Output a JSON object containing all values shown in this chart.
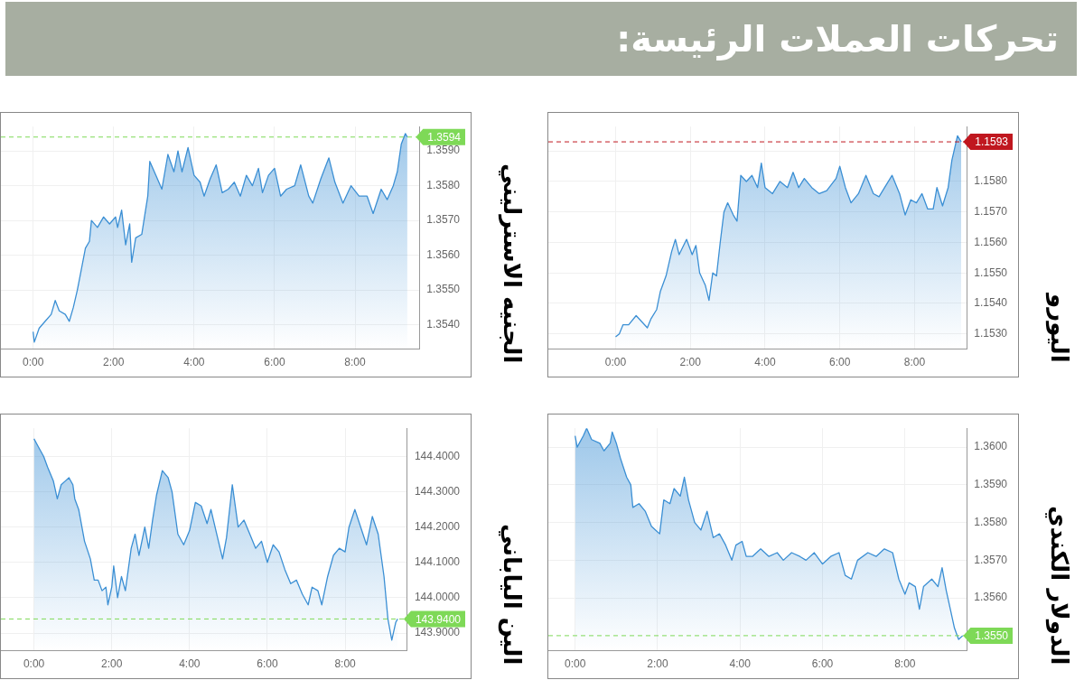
{
  "chart_data": [
    {
      "type": "area",
      "title": "تحركات العملات الرئيسة:",
      "ylabel": "اليورو",
      "grid": true,
      "legend": false,
      "xlim": [
        -1.8,
        9.4
      ],
      "xticks": [
        {
          "value": 0,
          "label": "0:00"
        },
        {
          "value": 2,
          "label": "2:00"
        },
        {
          "value": 4,
          "label": "4:00"
        },
        {
          "value": 6,
          "label": "6:00"
        },
        {
          "value": 8,
          "label": "8:00"
        }
      ],
      "ylim": [
        1.1525,
        1.1598
      ],
      "yticks": [
        {
          "value": 1.153,
          "label": "1.1530"
        },
        {
          "value": 1.154,
          "label": "1.1540"
        },
        {
          "value": 1.155,
          "label": "1.1550"
        },
        {
          "value": 1.156,
          "label": "1.1560"
        },
        {
          "value": 1.157,
          "label": "1.1570"
        },
        {
          "value": 1.158,
          "label": "1.1580"
        },
        {
          "value": 1.159,
          "label": null
        }
      ],
      "ref_lines": [
        {
          "axis": "y",
          "value": 1.1593,
          "label": "1.1593",
          "color": "#c0171f",
          "line_style": "dashed"
        }
      ],
      "x": [
        0,
        0.1,
        0.2,
        0.35,
        0.55,
        0.7,
        0.85,
        0.95,
        1.1,
        1.2,
        1.35,
        1.5,
        1.6,
        1.7,
        1.9,
        2.05,
        2.15,
        2.25,
        2.4,
        2.5,
        2.6,
        2.7,
        2.8,
        2.9,
        3.0,
        3.15,
        3.25,
        3.35,
        3.5,
        3.65,
        3.8,
        3.9,
        4.0,
        4.2,
        4.4,
        4.6,
        4.75,
        4.9,
        5.05,
        5.25,
        5.45,
        5.65,
        5.9,
        6.0,
        6.15,
        6.3,
        6.5,
        6.7,
        6.9,
        7.05,
        7.2,
        7.4,
        7.6,
        7.75,
        7.9,
        8.05,
        8.2,
        8.35,
        8.5,
        8.6,
        8.75,
        8.9,
        9.0,
        9.15,
        9.25
      ],
      "series": [
        {
          "color": "#3b8fd4",
          "values": [
            1.1529,
            1.153,
            1.1533,
            1.1533,
            1.1536,
            1.1534,
            1.1532,
            1.1535,
            1.1538,
            1.1544,
            1.1549,
            1.1557,
            1.1561,
            1.1556,
            1.1561,
            1.1556,
            1.1559,
            1.155,
            1.1546,
            1.1541,
            1.155,
            1.1549,
            1.156,
            1.157,
            1.1573,
            1.1569,
            1.1567,
            1.1582,
            1.158,
            1.1582,
            1.1578,
            1.1586,
            1.1578,
            1.1576,
            1.158,
            1.1578,
            1.1583,
            1.1578,
            1.1581,
            1.1578,
            1.1576,
            1.1577,
            1.1581,
            1.1585,
            1.1578,
            1.1573,
            1.1576,
            1.1582,
            1.1576,
            1.1575,
            1.1578,
            1.1582,
            1.1576,
            1.1569,
            1.1574,
            1.1573,
            1.1576,
            1.1571,
            1.1571,
            1.1578,
            1.1572,
            1.1578,
            1.1587,
            1.1595,
            1.1593
          ]
        }
      ]
    },
    {
      "type": "area",
      "ylabel": "الجنيه الاسترليني",
      "grid": true,
      "legend": false,
      "xlim": [
        -0.8,
        9.6
      ],
      "xticks": [
        {
          "value": 0,
          "label": "0:00"
        },
        {
          "value": 2,
          "label": "2:00"
        },
        {
          "value": 4,
          "label": "4:00"
        },
        {
          "value": 6,
          "label": "6:00"
        },
        {
          "value": 8,
          "label": "8:00"
        }
      ],
      "ylim": [
        1.3533,
        1.3597
      ],
      "yticks": [
        {
          "value": 1.354,
          "label": "1.3540"
        },
        {
          "value": 1.355,
          "label": "1.3550"
        },
        {
          "value": 1.356,
          "label": "1.3560"
        },
        {
          "value": 1.357,
          "label": "1.3570"
        },
        {
          "value": 1.358,
          "label": "1.3580"
        },
        {
          "value": 1.359,
          "label": "1.3590"
        }
      ],
      "ref_lines": [
        {
          "axis": "y",
          "value": 1.3594,
          "label": "1.3594",
          "color": "#7ed957",
          "line_style": "dashed"
        }
      ],
      "x": [
        0,
        0.03,
        0.15,
        0.3,
        0.45,
        0.55,
        0.65,
        0.8,
        0.9,
        1.0,
        1.1,
        1.2,
        1.3,
        1.4,
        1.45,
        1.6,
        1.75,
        1.9,
        2.05,
        2.1,
        2.2,
        2.3,
        2.4,
        2.45,
        2.55,
        2.7,
        2.85,
        2.9,
        3.05,
        3.2,
        3.35,
        3.5,
        3.6,
        3.7,
        3.85,
        4.0,
        4.15,
        4.25,
        4.4,
        4.55,
        4.7,
        4.85,
        5.0,
        5.15,
        5.3,
        5.45,
        5.6,
        5.7,
        5.85,
        6.0,
        6.15,
        6.3,
        6.5,
        6.65,
        6.85,
        6.95,
        7.15,
        7.35,
        7.5,
        7.7,
        7.9,
        8.1,
        8.3,
        8.45,
        8.65,
        8.8,
        8.95,
        9.05,
        9.15,
        9.25,
        9.3
      ],
      "series": [
        {
          "color": "#3b8fd4",
          "values": [
            1.3538,
            1.3535,
            1.3539,
            1.3541,
            1.3543,
            1.3547,
            1.3544,
            1.3543,
            1.3541,
            1.3545,
            1.355,
            1.3556,
            1.3562,
            1.3564,
            1.357,
            1.3568,
            1.3571,
            1.3569,
            1.3571,
            1.3568,
            1.3573,
            1.3563,
            1.3569,
            1.3558,
            1.3565,
            1.3566,
            1.3577,
            1.3587,
            1.3583,
            1.3579,
            1.3589,
            1.3584,
            1.359,
            1.3584,
            1.3591,
            1.3583,
            1.3581,
            1.3577,
            1.3582,
            1.3586,
            1.3578,
            1.3579,
            1.3581,
            1.3577,
            1.3583,
            1.358,
            1.3585,
            1.3578,
            1.3583,
            1.3585,
            1.3577,
            1.3579,
            1.358,
            1.3586,
            1.3577,
            1.3575,
            1.3582,
            1.3588,
            1.3581,
            1.3575,
            1.358,
            1.3577,
            1.3577,
            1.3572,
            1.3579,
            1.3576,
            1.358,
            1.3584,
            1.3592,
            1.3595,
            1.3594
          ]
        }
      ]
    },
    {
      "type": "area",
      "ylabel": "الدولار الكندي",
      "grid": true,
      "legend": false,
      "xlim": [
        -0.65,
        9.5
      ],
      "xticks": [
        {
          "value": 0,
          "label": "0:00"
        },
        {
          "value": 2,
          "label": "2:00"
        },
        {
          "value": 4,
          "label": "4:00"
        },
        {
          "value": 6,
          "label": "6:00"
        },
        {
          "value": 8,
          "label": "8:00"
        }
      ],
      "ylim": [
        1.3546,
        1.3605
      ],
      "yticks": [
        {
          "value": 1.356,
          "label": "1.3560"
        },
        {
          "value": 1.357,
          "label": "1.3570"
        },
        {
          "value": 1.358,
          "label": "1.3580"
        },
        {
          "value": 1.359,
          "label": "1.3590"
        },
        {
          "value": 1.36,
          "label": "1.3600"
        }
      ],
      "ref_lines": [
        {
          "axis": "y",
          "value": 1.355,
          "label": "1.3550",
          "color": "#7ed957",
          "line_style": "dashed"
        }
      ],
      "x": [
        0,
        0.05,
        0.2,
        0.28,
        0.4,
        0.6,
        0.7,
        0.85,
        0.9,
        1.0,
        1.1,
        1.25,
        1.35,
        1.4,
        1.55,
        1.7,
        1.85,
        1.95,
        2.05,
        2.15,
        2.3,
        2.4,
        2.55,
        2.65,
        2.75,
        2.9,
        3.05,
        3.2,
        3.35,
        3.5,
        3.65,
        3.8,
        3.9,
        4.05,
        4.15,
        4.3,
        4.5,
        4.7,
        4.9,
        5.05,
        5.25,
        5.45,
        5.6,
        5.8,
        6.0,
        6.2,
        6.4,
        6.55,
        6.7,
        6.85,
        7.1,
        7.3,
        7.5,
        7.7,
        7.85,
        8.0,
        8.1,
        8.25,
        8.35,
        8.45,
        8.65,
        8.8,
        8.9,
        9.0,
        9.1,
        9.2,
        9.3,
        9.4
      ],
      "series": [
        {
          "color": "#3b8fd4",
          "values": [
            1.3603,
            1.36,
            1.3603,
            1.3605,
            1.3602,
            1.3601,
            1.3599,
            1.3601,
            1.3604,
            1.3601,
            1.3597,
            1.3592,
            1.359,
            1.3584,
            1.3585,
            1.3583,
            1.3579,
            1.3578,
            1.3577,
            1.3586,
            1.3585,
            1.3589,
            1.3587,
            1.3592,
            1.3586,
            1.358,
            1.3578,
            1.3583,
            1.3576,
            1.3577,
            1.3574,
            1.357,
            1.3574,
            1.3575,
            1.3571,
            1.3571,
            1.3573,
            1.3571,
            1.3572,
            1.357,
            1.3572,
            1.3571,
            1.357,
            1.3572,
            1.3569,
            1.3571,
            1.3572,
            1.3566,
            1.3565,
            1.357,
            1.3572,
            1.3571,
            1.3573,
            1.3572,
            1.3565,
            1.3561,
            1.3564,
            1.3563,
            1.3557,
            1.3563,
            1.3565,
            1.3563,
            1.3568,
            1.3562,
            1.3557,
            1.3552,
            1.3549,
            1.355
          ]
        }
      ]
    },
    {
      "type": "area",
      "ylabel": "الين الياباني",
      "grid": true,
      "legend": false,
      "xlim": [
        -0.85,
        9.6
      ],
      "xticks": [
        {
          "value": 0,
          "label": "0:00"
        },
        {
          "value": 2,
          "label": "2:00"
        },
        {
          "value": 4,
          "label": "4:00"
        },
        {
          "value": 6,
          "label": "6:00"
        },
        {
          "value": 8,
          "label": "8:00"
        }
      ],
      "ylim": [
        143.85,
        144.48
      ],
      "yticks": [
        {
          "value": 143.9,
          "label": "143.9000"
        },
        {
          "value": 144,
          "label": "144.0000"
        },
        {
          "value": 144.1,
          "label": "144.1000"
        },
        {
          "value": 144.2,
          "label": "144.2000"
        },
        {
          "value": 144.3,
          "label": "144.3000"
        },
        {
          "value": 144.4,
          "label": "144.4000"
        }
      ],
      "ref_lines": [
        {
          "axis": "y",
          "value": 143.94,
          "label": "143.9400",
          "color": "#7ed957",
          "line_style": "dashed"
        }
      ],
      "x": [
        0,
        0.1,
        0.25,
        0.35,
        0.5,
        0.6,
        0.7,
        0.8,
        0.9,
        1.0,
        1.05,
        1.15,
        1.3,
        1.45,
        1.55,
        1.65,
        1.75,
        1.85,
        1.9,
        2.0,
        2.05,
        2.15,
        2.25,
        2.35,
        2.5,
        2.6,
        2.7,
        2.85,
        2.95,
        3.05,
        3.15,
        3.3,
        3.45,
        3.55,
        3.7,
        3.85,
        4.0,
        4.15,
        4.3,
        4.45,
        4.55,
        4.7,
        4.85,
        4.95,
        5.1,
        5.25,
        5.4,
        5.55,
        5.7,
        5.85,
        6.0,
        6.15,
        6.3,
        6.45,
        6.6,
        6.75,
        6.9,
        7.05,
        7.15,
        7.3,
        7.4,
        7.55,
        7.7,
        7.85,
        8.0,
        8.1,
        8.25,
        8.4,
        8.55,
        8.7,
        8.85,
        9.0,
        9.1,
        9.2,
        9.3,
        9.35
      ],
      "series": [
        {
          "color": "#3b8fd4",
          "values": [
            144.45,
            144.43,
            144.4,
            144.37,
            144.33,
            144.28,
            144.32,
            144.33,
            144.34,
            144.32,
            144.28,
            144.25,
            144.16,
            144.11,
            144.05,
            144.05,
            144.02,
            144.03,
            143.98,
            144.03,
            144.09,
            144.0,
            144.06,
            144.02,
            144.14,
            144.18,
            144.12,
            144.2,
            144.14,
            144.22,
            144.29,
            144.36,
            144.34,
            144.3,
            144.18,
            144.15,
            144.19,
            144.27,
            144.26,
            144.21,
            144.25,
            144.18,
            144.11,
            144.17,
            144.32,
            144.2,
            144.22,
            144.18,
            144.14,
            144.16,
            144.1,
            144.15,
            144.13,
            144.08,
            144.04,
            144.05,
            144.01,
            143.98,
            144.03,
            144.02,
            143.98,
            144.06,
            144.12,
            144.14,
            144.13,
            144.2,
            144.25,
            144.2,
            144.15,
            144.23,
            144.18,
            144.06,
            143.94,
            143.88,
            143.93,
            143.94
          ]
        }
      ]
    }
  ]
}
